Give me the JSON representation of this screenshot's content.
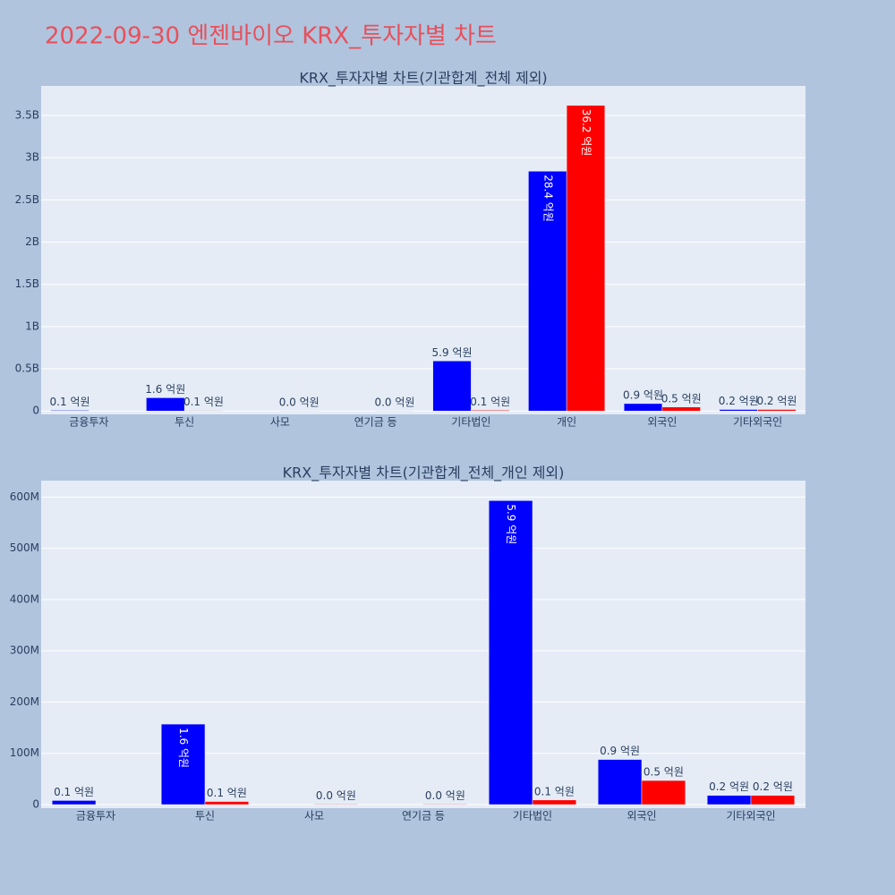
{
  "title": "2022-09-30 엔젠바이오 KRX_투자자별 차트",
  "chart_data": [
    {
      "type": "bar",
      "title": "KRX_투자자별 차트(기관합계_전체 제외)",
      "categories": [
        "금융투자",
        "투신",
        "사모",
        "연기금 등",
        "기타법인",
        "개인",
        "외국인",
        "기타외국인"
      ],
      "series": [
        {
          "color": "#0000ff",
          "values": [
            8000000,
            157000000,
            null,
            null,
            593000000,
            2840000000,
            88000000,
            18000000
          ],
          "value_labels": [
            "0.1 억원",
            "1.6 억원",
            null,
            null,
            "5.9 억원",
            "28.4 억원",
            "0.9 억원",
            "0.2 억원"
          ]
        },
        {
          "color": "#ff0000",
          "values": [
            null,
            6000000,
            1000000,
            1000000,
            9000000,
            3620000000,
            47000000,
            18000000
          ],
          "value_labels": [
            null,
            "0.1 억원",
            "0.0 억원",
            "0.0 억원",
            "0.1 억원",
            "36.2 억원",
            "0.5 억원",
            "0.2 억원"
          ]
        }
      ],
      "ylim": [
        -40000000,
        3850000000
      ],
      "yticks": [
        0,
        {
          "value": 500000000,
          "label": "0.5B"
        },
        {
          "value": 1000000000,
          "label": "1B"
        },
        {
          "value": 1500000000,
          "label": "1.5B"
        },
        {
          "value": 2000000000,
          "label": "2B"
        },
        {
          "value": 2500000000,
          "label": "2.5B"
        },
        {
          "value": 3000000000,
          "label": "3B"
        },
        {
          "value": 3500000000,
          "label": "3.5B"
        }
      ],
      "grid": true
    },
    {
      "type": "bar",
      "title": "KRX_투자자별 차트(기관합계_전체_개인 제외)",
      "categories": [
        "금융투자",
        "투신",
        "사모",
        "연기금 등",
        "기타법인",
        "외국인",
        "기타외국인"
      ],
      "series": [
        {
          "color": "#0000ff",
          "values": [
            8000000,
            157000000,
            null,
            null,
            593000000,
            88000000,
            18000000
          ],
          "value_labels": [
            "0.1 억원",
            "1.6 억원",
            null,
            null,
            "5.9 억원",
            "0.9 억원",
            "0.2 억원"
          ]
        },
        {
          "color": "#ff0000",
          "values": [
            null,
            6000000,
            1000000,
            1000000,
            9000000,
            47000000,
            18000000
          ],
          "value_labels": [
            null,
            "0.1 억원",
            "0.0 억원",
            "0.0 억원",
            "0.1 억원",
            "0.5 억원",
            "0.2 억원"
          ]
        }
      ],
      "ylim": [
        -7000000,
        632000000
      ],
      "yticks": [
        0,
        {
          "value": 100000000,
          "label": "100M"
        },
        {
          "value": 200000000,
          "label": "200M"
        },
        {
          "value": 300000000,
          "label": "300M"
        },
        {
          "value": 400000000,
          "label": "400M"
        },
        {
          "value": 500000000,
          "label": "500M"
        },
        {
          "value": 600000000,
          "label": "600M"
        }
      ],
      "grid": true
    }
  ]
}
